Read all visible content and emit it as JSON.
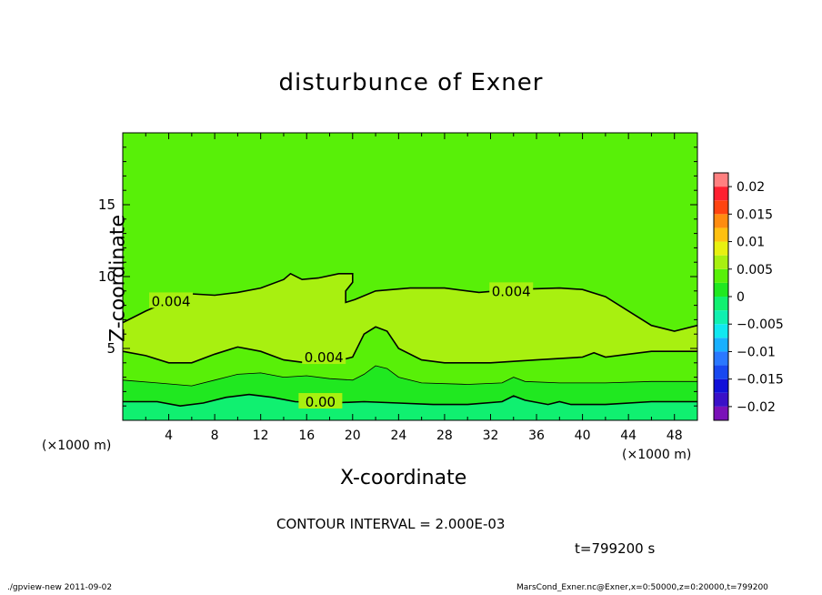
{
  "chart_data": {
    "type": "heatmap",
    "title": "disturbunce of Exner",
    "xlabel": "X-coordinate",
    "ylabel": "Z-coordinate",
    "x_unit_left": "(×1000 m)",
    "x_unit_right": "(×1000 m)",
    "xlim": [
      0,
      50
    ],
    "ylim": [
      0,
      20
    ],
    "x_ticks": [
      4,
      8,
      12,
      16,
      20,
      24,
      28,
      32,
      36,
      40,
      44,
      48
    ],
    "x_tick_labels": [
      "4",
      "8",
      "12",
      "16",
      "20",
      "24",
      "28",
      "32",
      "36",
      "40",
      "44",
      "48"
    ],
    "y_ticks": [
      5,
      10,
      15
    ],
    "y_tick_labels": [
      "5",
      "10",
      "15"
    ],
    "colorbar": {
      "range": [
        -0.02,
        0.02
      ],
      "levels": [
        -0.0225,
        -0.02,
        -0.0175,
        -0.015,
        -0.0125,
        -0.01,
        -0.0075,
        -0.005,
        -0.0025,
        0,
        0.0025,
        0.005,
        0.0075,
        0.01,
        0.0125,
        0.015,
        0.0175,
        0.02,
        0.0225
      ],
      "colors": [
        "#7a10b8",
        "#3a10c8",
        "#1010d8",
        "#1848f0",
        "#2a78ff",
        "#18b0ff",
        "#10e8f0",
        "#10f0b0",
        "#10f070",
        "#20e820",
        "#58f008",
        "#a8f010",
        "#e8f010",
        "#ffc010",
        "#ff8c10",
        "#ff4410",
        "#ff2030",
        "#ff8080"
      ],
      "tick_values": [
        0.02,
        0.015,
        0.01,
        0.005,
        0,
        -0.005,
        -0.01,
        -0.015,
        -0.02
      ],
      "tick_labels": [
        "0.02",
        "0.015",
        "0.01",
        "0.005",
        "0",
        "−0.005",
        "−0.01",
        "−0.015",
        "−0.02"
      ]
    },
    "contour_interval": 0.002,
    "contour_labels": [
      {
        "text": "0.004",
        "x": 4.2,
        "z": 8.2
      },
      {
        "text": "0.004",
        "x": 33.8,
        "z": 8.9
      },
      {
        "text": "0.004",
        "x": 17.5,
        "z": 4.3
      },
      {
        "text": "0.00",
        "x": 17.2,
        "z": 1.2
      }
    ],
    "contours": [
      {
        "value": 0.004,
        "points": [
          [
            0,
            6.8
          ],
          [
            2,
            7.6
          ],
          [
            4,
            8.3
          ],
          [
            6,
            8.8
          ],
          [
            8,
            8.7
          ],
          [
            10,
            8.9
          ],
          [
            12,
            9.2
          ],
          [
            14,
            9.8
          ],
          [
            14.6,
            10.2
          ],
          [
            15.6,
            9.8
          ],
          [
            17,
            9.9
          ],
          [
            18.8,
            10.2
          ],
          [
            20,
            10.2
          ],
          [
            20,
            9.6
          ],
          [
            19.4,
            9.0
          ],
          [
            19.4,
            8.2
          ],
          [
            20.2,
            8.4
          ],
          [
            22,
            9.0
          ],
          [
            25,
            9.2
          ],
          [
            28,
            9.2
          ],
          [
            31,
            8.9
          ],
          [
            34,
            9.1
          ],
          [
            38,
            9.2
          ],
          [
            40,
            9.1
          ],
          [
            42,
            8.6
          ],
          [
            44,
            7.6
          ],
          [
            46,
            6.6
          ],
          [
            48,
            6.2
          ],
          [
            50,
            6.6
          ]
        ]
      },
      {
        "value": 0.004,
        "points": [
          [
            0,
            4.8
          ],
          [
            2,
            4.5
          ],
          [
            4,
            4.0
          ],
          [
            6,
            4.0
          ],
          [
            8,
            4.6
          ],
          [
            10,
            5.1
          ],
          [
            12,
            4.8
          ],
          [
            14,
            4.2
          ],
          [
            16,
            4.0
          ],
          [
            18,
            4.0
          ],
          [
            20,
            4.4
          ],
          [
            21,
            6.0
          ],
          [
            22,
            6.5
          ],
          [
            23,
            6.2
          ],
          [
            24,
            5.0
          ],
          [
            26,
            4.2
          ],
          [
            28,
            4.0
          ],
          [
            32,
            4.0
          ],
          [
            36,
            4.2
          ],
          [
            40,
            4.4
          ],
          [
            41,
            4.7
          ],
          [
            42,
            4.4
          ],
          [
            44,
            4.6
          ],
          [
            46,
            4.8
          ],
          [
            50,
            4.8
          ]
        ]
      },
      {
        "value": 0.002,
        "points": [
          [
            0,
            2.8
          ],
          [
            3,
            2.6
          ],
          [
            6,
            2.4
          ],
          [
            8,
            2.8
          ],
          [
            10,
            3.2
          ],
          [
            12,
            3.3
          ],
          [
            14,
            3.0
          ],
          [
            16,
            3.1
          ],
          [
            18,
            2.9
          ],
          [
            20,
            2.8
          ],
          [
            21,
            3.2
          ],
          [
            22,
            3.8
          ],
          [
            23,
            3.6
          ],
          [
            24,
            3.0
          ],
          [
            26,
            2.6
          ],
          [
            30,
            2.5
          ],
          [
            33,
            2.6
          ],
          [
            34,
            3.0
          ],
          [
            35,
            2.7
          ],
          [
            38,
            2.6
          ],
          [
            42,
            2.6
          ],
          [
            46,
            2.7
          ],
          [
            50,
            2.7
          ]
        ]
      },
      {
        "value": 0.0,
        "points": [
          [
            0,
            1.3
          ],
          [
            3,
            1.3
          ],
          [
            5,
            1.0
          ],
          [
            7,
            1.2
          ],
          [
            9,
            1.6
          ],
          [
            11,
            1.8
          ],
          [
            13,
            1.6
          ],
          [
            15,
            1.3
          ],
          [
            18,
            1.2
          ],
          [
            21,
            1.3
          ],
          [
            24,
            1.2
          ],
          [
            27,
            1.1
          ],
          [
            30,
            1.1
          ],
          [
            33,
            1.3
          ],
          [
            34,
            1.7
          ],
          [
            35,
            1.4
          ],
          [
            37,
            1.1
          ],
          [
            38,
            1.3
          ],
          [
            39,
            1.1
          ],
          [
            42,
            1.1
          ],
          [
            46,
            1.3
          ],
          [
            50,
            1.3
          ]
        ]
      }
    ],
    "grid": false
  },
  "annotations": {
    "contour_interval": "CONTOUR INTERVAL = 2.000E-03",
    "time": "t=799200 s",
    "footer_left": "./gpview-new   2011-09-02",
    "footer_right": "MarsCond_Exner.nc@Exner,x=0:50000,z=0:20000,t=799200"
  }
}
